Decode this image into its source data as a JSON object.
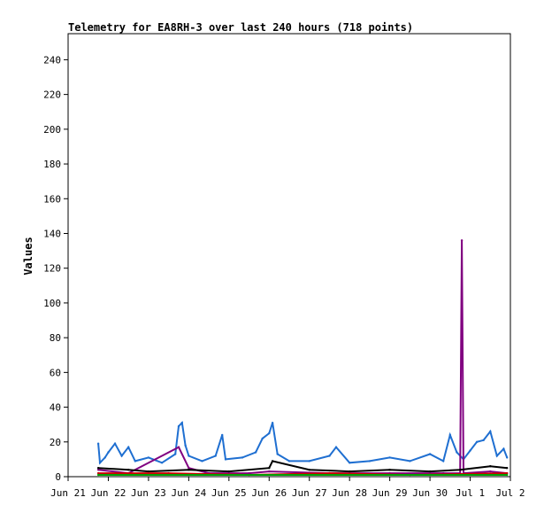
{
  "chart_data": {
    "type": "line",
    "title": "Telemetry for EA8RH-3 over last 240 hours (718 points)",
    "xlabel": "",
    "ylabel": "Values",
    "xlim": [
      "2024-06-21",
      "2024-07-02"
    ],
    "ylim": [
      0,
      255
    ],
    "y_ticks": [
      0,
      20,
      40,
      60,
      80,
      100,
      120,
      140,
      160,
      180,
      200,
      220,
      240
    ],
    "x_ticks": [
      {
        "date": "2024-06-21",
        "label": "Jun 21"
      },
      {
        "date": "2024-06-22",
        "label": "Jun 22"
      },
      {
        "date": "2024-06-23",
        "label": "Jun 23"
      },
      {
        "date": "2024-06-24",
        "label": "Jun 24"
      },
      {
        "date": "2024-06-25",
        "label": "Jun 25"
      },
      {
        "date": "2024-06-26",
        "label": "Jun 26"
      },
      {
        "date": "2024-06-27",
        "label": "Jun 27"
      },
      {
        "date": "2024-06-28",
        "label": "Jun 28"
      },
      {
        "date": "2024-06-29",
        "label": "Jun 29"
      },
      {
        "date": "2024-06-30",
        "label": "Jun 30"
      },
      {
        "date": "2024-07-01",
        "label": "Jul 1"
      },
      {
        "date": "2024-07-02",
        "label": "Jul 2"
      }
    ],
    "grid": false,
    "legend": "none",
    "series": [
      {
        "color": "#1f6fd1",
        "points": [
          [
            "2024-06-21 18:00",
            19
          ],
          [
            "2024-06-21 19:00",
            8
          ],
          [
            "2024-06-21 22:00",
            11
          ],
          [
            "2024-06-22 00:00",
            14
          ],
          [
            "2024-06-22 04:00",
            19
          ],
          [
            "2024-06-22 08:00",
            12
          ],
          [
            "2024-06-22 12:00",
            17
          ],
          [
            "2024-06-22 16:00",
            9
          ],
          [
            "2024-06-23 00:00",
            11
          ],
          [
            "2024-06-23 08:00",
            8
          ],
          [
            "2024-06-23 16:00",
            13
          ],
          [
            "2024-06-23 18:00",
            29
          ],
          [
            "2024-06-23 20:00",
            31
          ],
          [
            "2024-06-23 22:00",
            18
          ],
          [
            "2024-06-24 00:00",
            12
          ],
          [
            "2024-06-24 08:00",
            9
          ],
          [
            "2024-06-24 16:00",
            12
          ],
          [
            "2024-06-24 20:00",
            24
          ],
          [
            "2024-06-24 22:00",
            10
          ],
          [
            "2024-06-25 08:00",
            11
          ],
          [
            "2024-06-25 16:00",
            14
          ],
          [
            "2024-06-25 20:00",
            22
          ],
          [
            "2024-06-26 00:00",
            25
          ],
          [
            "2024-06-26 02:00",
            31
          ],
          [
            "2024-06-26 05:00",
            13
          ],
          [
            "2024-06-26 12:00",
            9
          ],
          [
            "2024-06-27 00:00",
            9
          ],
          [
            "2024-06-27 12:00",
            12
          ],
          [
            "2024-06-27 16:00",
            17
          ],
          [
            "2024-06-28 00:00",
            8
          ],
          [
            "2024-06-28 12:00",
            9
          ],
          [
            "2024-06-29 00:00",
            11
          ],
          [
            "2024-06-29 12:00",
            9
          ],
          [
            "2024-06-30 00:00",
            13
          ],
          [
            "2024-06-30 08:00",
            9
          ],
          [
            "2024-06-30 12:00",
            24
          ],
          [
            "2024-06-30 16:00",
            14
          ],
          [
            "2024-06-30 20:00",
            10
          ],
          [
            "2024-07-01 00:00",
            15
          ],
          [
            "2024-07-01 04:00",
            20
          ],
          [
            "2024-07-01 08:00",
            21
          ],
          [
            "2024-07-01 12:00",
            26
          ],
          [
            "2024-07-01 16:00",
            12
          ],
          [
            "2024-07-01 20:00",
            16
          ],
          [
            "2024-07-01 22:00",
            11
          ]
        ]
      },
      {
        "color": "#800080",
        "points": [
          [
            "2024-06-21 18:00",
            4
          ],
          [
            "2024-06-22 12:00",
            2
          ],
          [
            "2024-06-23 18:00",
            17
          ],
          [
            "2024-06-24 00:00",
            5
          ],
          [
            "2024-06-24 12:00",
            2
          ],
          [
            "2024-06-25 12:00",
            2
          ],
          [
            "2024-06-26 00:00",
            3
          ],
          [
            "2024-06-27 12:00",
            2
          ],
          [
            "2024-06-29 00:00",
            2
          ],
          [
            "2024-06-30 08:00",
            2
          ],
          [
            "2024-06-30 18:00",
            2
          ],
          [
            "2024-06-30 19:00",
            136
          ],
          [
            "2024-06-30 20:00",
            2
          ],
          [
            "2024-07-01 12:00",
            3
          ],
          [
            "2024-07-01 22:00",
            2
          ]
        ]
      },
      {
        "color": "#000000",
        "points": [
          [
            "2024-06-21 18:00",
            5
          ],
          [
            "2024-06-22 12:00",
            4
          ],
          [
            "2024-06-23 00:00",
            3
          ],
          [
            "2024-06-24 00:00",
            4
          ],
          [
            "2024-06-25 00:00",
            3
          ],
          [
            "2024-06-26 00:00",
            5
          ],
          [
            "2024-06-26 02:00",
            9
          ],
          [
            "2024-06-27 00:00",
            4
          ],
          [
            "2024-06-28 00:00",
            3
          ],
          [
            "2024-06-29 00:00",
            4
          ],
          [
            "2024-06-30 00:00",
            3
          ],
          [
            "2024-06-30 18:00",
            4
          ],
          [
            "2024-07-01 12:00",
            6
          ],
          [
            "2024-07-01 22:00",
            5
          ]
        ]
      },
      {
        "color": "#cc0000",
        "points": [
          [
            "2024-06-21 18:00",
            2
          ],
          [
            "2024-06-23 12:00",
            2
          ],
          [
            "2024-06-25 12:00",
            1
          ],
          [
            "2024-06-27 12:00",
            2
          ],
          [
            "2024-06-29 12:00",
            1
          ],
          [
            "2024-07-01 22:00",
            2
          ]
        ]
      },
      {
        "color": "#00a000",
        "points": [
          [
            "2024-06-21 18:00",
            1
          ],
          [
            "2024-06-24 00:00",
            1
          ],
          [
            "2024-06-27 00:00",
            1
          ],
          [
            "2024-06-30 00:00",
            1
          ],
          [
            "2024-07-01 22:00",
            1
          ]
        ]
      }
    ]
  }
}
